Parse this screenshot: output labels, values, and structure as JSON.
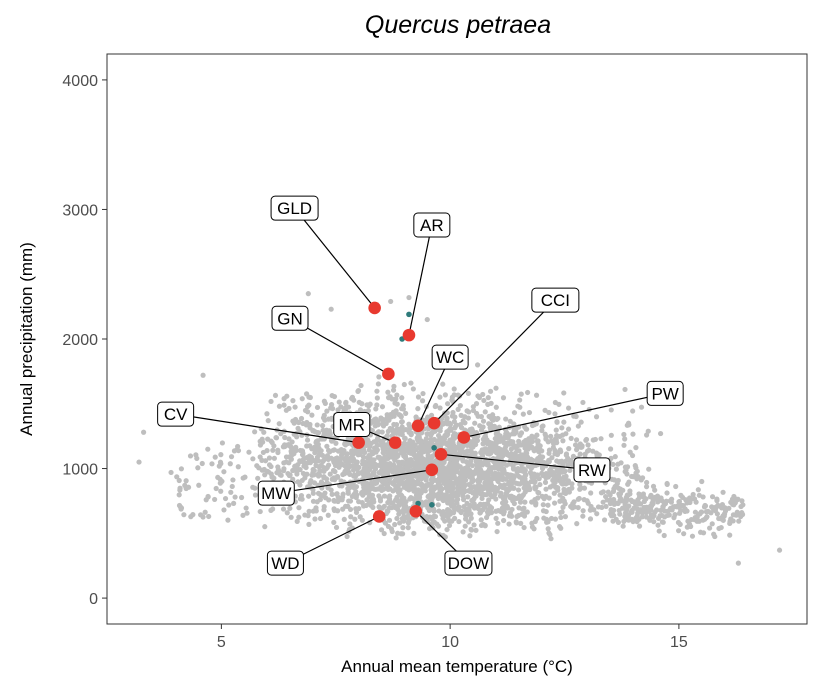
{
  "chart_data": {
    "type": "scatter",
    "title": "Quercus petraea",
    "xlabel": "Annual mean temperature (°C)",
    "ylabel": "Annual precipitation (mm)",
    "xlim": [
      2.5,
      17.8
    ],
    "ylim": [
      -200,
      4200
    ],
    "x_ticks": [
      5,
      10,
      15
    ],
    "y_ticks": [
      0,
      1000,
      2000,
      3000,
      4000
    ],
    "grid": false,
    "background_cloud": {
      "color": "#bebebe",
      "description_points_sample": [
        [
          3.2,
          1050
        ],
        [
          3.3,
          1280
        ],
        [
          3.9,
          970
        ],
        [
          4.2,
          870
        ],
        [
          4.6,
          1720
        ],
        [
          5.3,
          780
        ],
        [
          6.9,
          2350
        ],
        [
          7.4,
          2230
        ],
        [
          8.7,
          2290
        ],
        [
          9.1,
          2320
        ],
        [
          9.5,
          2150
        ],
        [
          12.3,
          1510
        ],
        [
          13.2,
          1400
        ],
        [
          13.9,
          1350
        ],
        [
          14.6,
          1270
        ],
        [
          15.5,
          900
        ],
        [
          16.2,
          720
        ],
        [
          16.3,
          270
        ],
        [
          17.2,
          370
        ],
        [
          11.6,
          1420
        ],
        [
          10.4,
          1580
        ],
        [
          10.6,
          1800
        ]
      ]
    },
    "teal_points": {
      "color": "#2e7b7b",
      "points": [
        [
          9.1,
          2190
        ],
        [
          8.95,
          2000
        ],
        [
          9.65,
          1160
        ],
        [
          9.3,
          730
        ],
        [
          9.6,
          720
        ]
      ]
    },
    "sites": [
      {
        "label": "GLD",
        "x": 8.35,
        "y": 2240,
        "label_x": 6.6,
        "label_y": 3010
      },
      {
        "label": "AR",
        "x": 9.1,
        "y": 2030,
        "label_x": 9.6,
        "label_y": 2880
      },
      {
        "label": "GN",
        "x": 8.65,
        "y": 1730,
        "label_x": 6.5,
        "label_y": 2160
      },
      {
        "label": "CCI",
        "x": 9.65,
        "y": 1350,
        "label_x": 12.3,
        "label_y": 2300
      },
      {
        "label": "WC",
        "x": 9.3,
        "y": 1330,
        "label_x": 10.0,
        "label_y": 1860
      },
      {
        "label": "PW",
        "x": 10.3,
        "y": 1240,
        "label_x": 14.7,
        "label_y": 1580
      },
      {
        "label": "CV",
        "x": 8.0,
        "y": 1200,
        "label_x": 4.0,
        "label_y": 1420
      },
      {
        "label": "MR",
        "x": 8.8,
        "y": 1200,
        "label_x": 7.85,
        "label_y": 1340
      },
      {
        "label": "RW",
        "x": 9.8,
        "y": 1110,
        "label_x": 13.1,
        "label_y": 990
      },
      {
        "label": "MW",
        "x": 9.6,
        "y": 990,
        "label_x": 6.2,
        "label_y": 810
      },
      {
        "label": "WD",
        "x": 8.45,
        "y": 630,
        "label_x": 6.4,
        "label_y": 270
      },
      {
        "label": "DOW",
        "x": 9.25,
        "y": 670,
        "label_x": 10.4,
        "label_y": 270
      }
    ],
    "site_color": "#e8392f"
  }
}
